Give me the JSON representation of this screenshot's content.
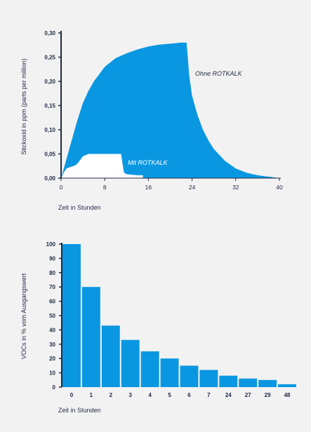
{
  "chart_data": [
    {
      "type": "area",
      "xlabel": "Zeit in Stunden",
      "ylabel": "Stickoxid in ppm (parts per million)",
      "xlim": [
        0,
        40
      ],
      "ylim": [
        0,
        0.3
      ],
      "x_ticks": [
        "0",
        "8",
        "16",
        "24",
        "32",
        "40"
      ],
      "y_ticks": [
        "0,00",
        "0,05",
        "0,10",
        "0,15",
        "0,20",
        "0,25",
        "0,30"
      ],
      "grid": false,
      "series": [
        {
          "name": "Ohne ROTKALK",
          "color": "#0a97e2",
          "x": [
            0,
            1,
            2,
            3,
            4,
            5,
            6,
            7,
            8,
            10,
            12,
            14,
            16,
            18,
            20,
            22,
            23,
            23.5,
            24,
            25,
            26,
            27,
            28,
            30,
            32,
            34,
            36,
            38,
            40
          ],
          "y": [
            0,
            0.04,
            0.08,
            0.12,
            0.155,
            0.18,
            0.2,
            0.215,
            0.23,
            0.248,
            0.258,
            0.266,
            0.272,
            0.276,
            0.278,
            0.28,
            0.28,
            0.21,
            0.17,
            0.13,
            0.1,
            0.078,
            0.06,
            0.036,
            0.02,
            0.011,
            0.006,
            0.003,
            0
          ]
        },
        {
          "name": "Mit ROTKALK",
          "color": "#ffffff",
          "x": [
            0,
            0.5,
            1,
            1.5,
            2,
            2.5,
            3,
            4,
            5,
            6,
            8,
            10,
            11,
            11.5,
            12,
            14,
            15,
            15
          ],
          "y": [
            0,
            0.012,
            0.02,
            0.022,
            0.024,
            0.026,
            0.03,
            0.045,
            0.05,
            0.05,
            0.05,
            0.05,
            0.05,
            0.012,
            0.008,
            0.006,
            0.006,
            0
          ]
        }
      ]
    },
    {
      "type": "bar",
      "xlabel": "Zeit in Stunden",
      "ylabel": "VOCs in % vom Ausgangswert",
      "ylim": [
        0,
        100
      ],
      "y_ticks": [
        "0",
        "10",
        "20",
        "30",
        "40",
        "50",
        "60",
        "70",
        "80",
        "90",
        "100"
      ],
      "categories": [
        "0",
        "1",
        "2",
        "3",
        "4",
        "5",
        "6",
        "7",
        "24",
        "27",
        "29",
        "48"
      ],
      "values": [
        100,
        70,
        43,
        33,
        25,
        20,
        15,
        12,
        8,
        6,
        5,
        2
      ],
      "color": "#0a97e2",
      "grid": false
    }
  ]
}
